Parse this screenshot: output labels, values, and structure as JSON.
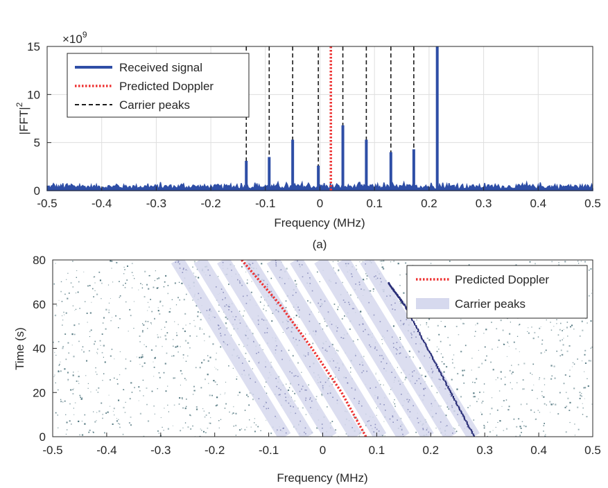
{
  "figure": {
    "caption_a": "(a)"
  },
  "chart_data": [
    {
      "type": "line",
      "id": "a",
      "ylabel": "|FFT|",
      "ylabel_sup": "2",
      "xlabel": "Frequency (MHz)",
      "y_exponent_label": "×10",
      "y_exponent_sup": "9",
      "x_ticks": [
        "-0.5",
        "-0.4",
        "-0.3",
        "-0.2",
        "-0.1",
        "0",
        "0.1",
        "0.2",
        "0.3",
        "0.4",
        "0.5"
      ],
      "y_ticks": [
        "0",
        "5",
        "10",
        "15"
      ],
      "xlim": [
        -0.5,
        0.5
      ],
      "ylim": [
        0,
        15
      ],
      "grid": true,
      "legend_position": "top-left",
      "series": [
        {
          "name": "Received signal",
          "style": "solid",
          "color": "#2e4ea6",
          "noise_floor_max": 0.8,
          "peaks": [
            {
              "x": -0.135,
              "y": 3.1
            },
            {
              "x": -0.093,
              "y": 3.5
            },
            {
              "x": -0.05,
              "y": 5.3
            },
            {
              "x": -0.003,
              "y": 2.6
            },
            {
              "x": 0.042,
              "y": 6.8
            },
            {
              "x": 0.085,
              "y": 5.3
            },
            {
              "x": 0.13,
              "y": 4.0
            },
            {
              "x": 0.172,
              "y": 4.3
            },
            {
              "x": 0.215,
              "y": 15.0
            }
          ]
        },
        {
          "name": "Predicted Doppler",
          "style": "dotted",
          "color": "#ee3333",
          "x": 0.02
        },
        {
          "name": "Carrier peaks",
          "style": "dashed",
          "color": "#1a1a1a",
          "x": [
            -0.135,
            -0.093,
            -0.05,
            -0.003,
            0.042,
            0.085,
            0.13,
            0.172,
            0.215
          ]
        }
      ]
    },
    {
      "type": "heatmap",
      "id": "b",
      "ylabel": "Time (s)",
      "xlabel": "Frequency (MHz)",
      "x_ticks": [
        "-0.5",
        "-0.4",
        "-0.3",
        "-0.2",
        "-0.1",
        "0",
        "0.1",
        "0.2",
        "0.3",
        "0.4",
        "0.5"
      ],
      "y_ticks": [
        "0",
        "20",
        "40",
        "60",
        "80"
      ],
      "xlim": [
        -0.5,
        0.5
      ],
      "ylim": [
        0,
        80
      ],
      "legend_position": "top-right",
      "colors": {
        "noise": "#3d6670",
        "band": "#d6d9ee",
        "track": "#2a2f78"
      },
      "series": [
        {
          "name": "Predicted Doppler",
          "style": "dotted",
          "color": "#ee3333",
          "points": [
            [
              0.08,
              0
            ],
            [
              0.035,
              20
            ],
            [
              -0.02,
              40
            ],
            [
              -0.08,
              60
            ],
            [
              -0.15,
              80
            ]
          ]
        },
        {
          "name": "Carrier peaks",
          "style": "band",
          "color": "#d6d9ee",
          "offsets": [
            -0.135,
            -0.093,
            -0.05,
            -0.003,
            0.042,
            0.085,
            0.13,
            0.172,
            0.215
          ],
          "center_at_t0": 0.065,
          "center_slope_per_s": -0.0025,
          "band_width": 0.025
        },
        {
          "name": "Strong carrier track",
          "style": "points",
          "color": "#2a2f78",
          "points": [
            [
              0.28,
              0
            ],
            [
              0.215,
              30
            ],
            [
              0.15,
              60
            ],
            [
              0.12,
              70
            ]
          ]
        }
      ]
    }
  ]
}
